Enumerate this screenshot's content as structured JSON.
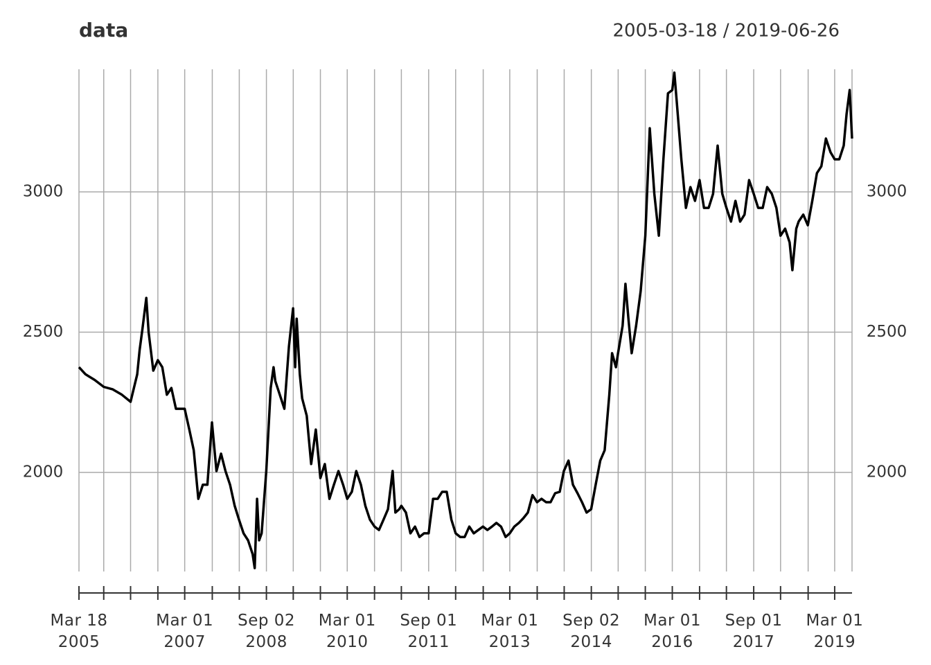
{
  "chart_data": {
    "type": "line",
    "title": "data",
    "date_range": "2005-03-18 / 2019-06-26",
    "xlim": [
      "2005-03-18",
      "2019-06-26"
    ],
    "ylim": [
      1647,
      3437
    ],
    "yticks": [
      2000,
      2500,
      3000
    ],
    "grid": true,
    "xticks": [
      {
        "value": "2005-03-18",
        "label": "Mar 18\n2005"
      },
      {
        "value": "2007-03-01",
        "label": "Mar 01\n2007"
      },
      {
        "value": "2008-09-02",
        "label": "Sep 02\n2008"
      },
      {
        "value": "2010-03-01",
        "label": "Mar 01\n2010"
      },
      {
        "value": "2011-09-01",
        "label": "Sep 01\n2011"
      },
      {
        "value": "2013-03-01",
        "label": "Mar 01\n2013"
      },
      {
        "value": "2014-09-02",
        "label": "Sep 02\n2014"
      },
      {
        "value": "2016-03-01",
        "label": "Mar 01\n2016"
      },
      {
        "value": "2017-09-01",
        "label": "Sep 01\n2017"
      },
      {
        "value": "2019-03-01",
        "label": "Mar 01\n2019"
      }
    ],
    "xminor": [
      "2005-09-01",
      "2006-03-01",
      "2006-09-01",
      "2007-09-03",
      "2008-03-03",
      "2009-03-02",
      "2009-09-01",
      "2010-09-01",
      "2011-03-01",
      "2012-03-01",
      "2012-09-03",
      "2013-09-02",
      "2014-03-03",
      "2015-03-02",
      "2015-09-01",
      "2016-09-01",
      "2017-03-01",
      "2018-03-01",
      "2018-09-03"
    ],
    "x": [
      "2005-03-18",
      "2005-05-01",
      "2005-07-01",
      "2005-09-01",
      "2005-11-01",
      "2006-01-01",
      "2006-03-01",
      "2006-04-15",
      "2006-05-01",
      "2006-05-20",
      "2006-06-15",
      "2006-07-01",
      "2006-08-01",
      "2006-09-01",
      "2006-10-01",
      "2006-11-01",
      "2006-12-01",
      "2007-01-01",
      "2007-03-01",
      "2007-04-01",
      "2007-05-01",
      "2007-06-01",
      "2007-07-01",
      "2007-08-01",
      "2007-09-01",
      "2007-10-01",
      "2007-11-01",
      "2007-12-01",
      "2008-01-01",
      "2008-02-01",
      "2008-03-01",
      "2008-04-01",
      "2008-05-01",
      "2008-06-01",
      "2008-06-15",
      "2008-07-01",
      "2008-07-15",
      "2008-08-01",
      "2008-09-01",
      "2008-10-01",
      "2008-10-20",
      "2008-11-01",
      "2008-12-01",
      "2009-01-01",
      "2009-02-01",
      "2009-03-01",
      "2009-03-15",
      "2009-03-25",
      "2009-04-15",
      "2009-05-01",
      "2009-06-01",
      "2009-07-01",
      "2009-08-01",
      "2009-09-01",
      "2009-10-01",
      "2009-11-01",
      "2009-12-01",
      "2010-01-01",
      "2010-02-01",
      "2010-03-01",
      "2010-04-01",
      "2010-05-01",
      "2010-06-01",
      "2010-07-01",
      "2010-08-01",
      "2010-09-01",
      "2010-10-01",
      "2010-11-01",
      "2010-12-01",
      "2011-01-01",
      "2011-01-20",
      "2011-02-15",
      "2011-03-01",
      "2011-04-01",
      "2011-05-01",
      "2011-06-01",
      "2011-07-01",
      "2011-08-01",
      "2011-09-01",
      "2011-10-01",
      "2011-11-01",
      "2011-12-01",
      "2012-01-01",
      "2012-02-01",
      "2012-03-01",
      "2012-04-01",
      "2012-05-01",
      "2012-06-01",
      "2012-07-01",
      "2012-08-01",
      "2012-09-01",
      "2012-10-01",
      "2012-11-01",
      "2012-12-01",
      "2013-01-01",
      "2013-02-01",
      "2013-03-01",
      "2013-04-01",
      "2013-05-01",
      "2013-06-01",
      "2013-07-01",
      "2013-08-01",
      "2013-09-01",
      "2013-10-01",
      "2013-11-01",
      "2013-12-01",
      "2014-01-01",
      "2014-02-01",
      "2014-03-01",
      "2014-04-01",
      "2014-05-01",
      "2014-06-01",
      "2014-07-01",
      "2014-08-01",
      "2014-09-01",
      "2014-10-01",
      "2014-11-01",
      "2014-12-01",
      "2015-01-01",
      "2015-01-20",
      "2015-02-15",
      "2015-03-01",
      "2015-04-01",
      "2015-04-20",
      "2015-05-10",
      "2015-06-01",
      "2015-07-01",
      "2015-08-01",
      "2015-09-01",
      "2015-10-01",
      "2015-11-01",
      "2015-12-01",
      "2016-01-01",
      "2016-02-01",
      "2016-03-01",
      "2016-03-15",
      "2016-04-01",
      "2016-05-01",
      "2016-06-01",
      "2016-07-01",
      "2016-08-01",
      "2016-09-01",
      "2016-10-01",
      "2016-11-01",
      "2016-12-01",
      "2017-01-01",
      "2017-02-01",
      "2017-03-01",
      "2017-04-01",
      "2017-05-01",
      "2017-06-01",
      "2017-07-01",
      "2017-08-01",
      "2017-09-01",
      "2017-10-01",
      "2017-11-01",
      "2017-12-01",
      "2018-01-01",
      "2018-02-01",
      "2018-03-01",
      "2018-04-01",
      "2018-05-01",
      "2018-05-20",
      "2018-06-15",
      "2018-07-01",
      "2018-08-01",
      "2018-09-01",
      "2018-10-01",
      "2018-11-01",
      "2018-12-01",
      "2019-01-01",
      "2019-02-01",
      "2019-03-01",
      "2019-04-01",
      "2019-05-01",
      "2019-05-20",
      "2019-06-10",
      "2019-06-26"
    ],
    "series": [
      {
        "color": "#000000",
        "values": [
          2375,
          2350,
          2330,
          2305,
          2296,
          2277,
          2252,
          2350,
          2437,
          2511,
          2622,
          2499,
          2363,
          2400,
          2375,
          2277,
          2301,
          2227,
          2227,
          2153,
          2079,
          1906,
          1956,
          1956,
          2178,
          2005,
          2067,
          2005,
          1956,
          1881,
          1832,
          1783,
          1758,
          1709,
          1659,
          1906,
          1758,
          1783,
          2005,
          2301,
          2375,
          2326,
          2277,
          2227,
          2449,
          2585,
          2375,
          2548,
          2350,
          2264,
          2202,
          2030,
          2153,
          1980,
          2030,
          1906,
          1956,
          2005,
          1956,
          1906,
          1931,
          2005,
          1956,
          1881,
          1832,
          1807,
          1795,
          1832,
          1869,
          2005,
          1857,
          1869,
          1881,
          1857,
          1783,
          1807,
          1770,
          1783,
          1783,
          1906,
          1906,
          1931,
          1931,
          1832,
          1783,
          1770,
          1770,
          1807,
          1783,
          1795,
          1807,
          1795,
          1807,
          1820,
          1807,
          1770,
          1783,
          1807,
          1820,
          1837,
          1857,
          1919,
          1894,
          1906,
          1894,
          1894,
          1926,
          1931,
          2005,
          2042,
          1956,
          1926,
          1894,
          1857,
          1869,
          1956,
          2042,
          2079,
          2277,
          2425,
          2375,
          2425,
          2523,
          2672,
          2548,
          2425,
          2523,
          2647,
          2844,
          3227,
          2993,
          2844,
          3116,
          3351,
          3363,
          3425,
          3314,
          3116,
          2943,
          3017,
          2968,
          3042,
          2943,
          2943,
          2993,
          3165,
          2993,
          2943,
          2894,
          2968,
          2894,
          2919,
          3042,
          2993,
          2943,
          2943,
          3017,
          2993,
          2943,
          2844,
          2869,
          2820,
          2721,
          2869,
          2894,
          2919,
          2881,
          2968,
          3067,
          3091,
          3190,
          3141,
          3116,
          3116,
          3165,
          3277,
          3363,
          3190
        ]
      }
    ]
  }
}
